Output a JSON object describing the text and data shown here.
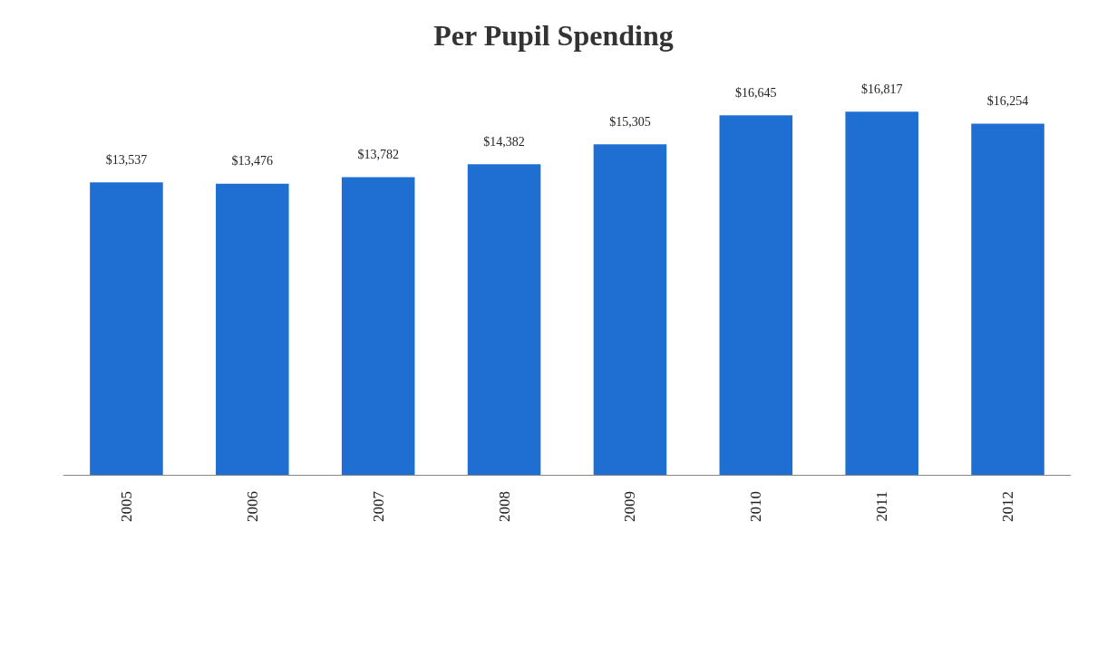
{
  "chart_data": {
    "type": "bar",
    "title": "Per Pupil Spending",
    "categories": [
      "2005",
      "2006",
      "2007",
      "2008",
      "2009",
      "2010",
      "2011",
      "2012"
    ],
    "values": [
      13537,
      13476,
      13782,
      14382,
      15305,
      16645,
      16817,
      16254
    ],
    "value_labels": [
      "$13,537",
      "$13,476",
      "$13,782",
      "$14,382",
      "$15,305",
      "$16,645",
      "$16,817",
      "$16,254"
    ],
    "color": "#1f6fd3"
  }
}
